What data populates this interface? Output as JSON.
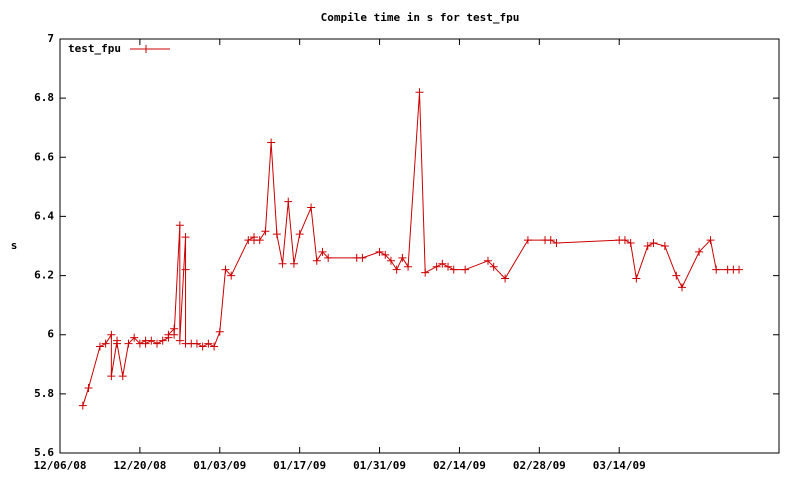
{
  "chart_data": {
    "type": "line",
    "title": "Compile time in s for test_fpu",
    "ylabel": "s",
    "legend": "top-left",
    "x": [
      "2008-12-10",
      "2008-12-11",
      "2008-12-13",
      "2008-12-14",
      "2008-12-15",
      "2008-12-15",
      "2008-12-16",
      "2008-12-16",
      "2008-12-17",
      "2008-12-18",
      "2008-12-19",
      "2008-12-20",
      "2008-12-21",
      "2008-12-21",
      "2008-12-22",
      "2008-12-23",
      "2008-12-24",
      "2008-12-25",
      "2008-12-25",
      "2008-12-26",
      "2008-12-26",
      "2008-12-27",
      "2008-12-27",
      "2008-12-28",
      "2008-12-28",
      "2008-12-28",
      "2008-12-29",
      "2008-12-30",
      "2008-12-31",
      "2009-01-01",
      "2009-01-02",
      "2009-01-03",
      "2009-01-04",
      "2009-01-05",
      "2009-01-08",
      "2009-01-09",
      "2009-01-09",
      "2009-01-10",
      "2009-01-11",
      "2009-01-12",
      "2009-01-13",
      "2009-01-14",
      "2009-01-15",
      "2009-01-16",
      "2009-01-17",
      "2009-01-19",
      "2009-01-20",
      "2009-01-21",
      "2009-01-22",
      "2009-01-27",
      "2009-01-28",
      "2009-01-31",
      "2009-02-01",
      "2009-02-02",
      "2009-02-03",
      "2009-02-04",
      "2009-02-05",
      "2009-02-07",
      "2009-02-08",
      "2009-02-10",
      "2009-02-11",
      "2009-02-12",
      "2009-02-13",
      "2009-02-15",
      "2009-02-19",
      "2009-02-20",
      "2009-02-22",
      "2009-02-26",
      "2009-03-01",
      "2009-03-02",
      "2009-03-03",
      "2009-03-14",
      "2009-03-15",
      "2009-03-16",
      "2009-03-17",
      "2009-03-19",
      "2009-03-20",
      "2009-03-22",
      "2009-03-24",
      "2009-03-25",
      "2009-03-28",
      "2009-03-30",
      "2009-03-31",
      "2009-04-02",
      "2009-04-03",
      "2009-04-04"
    ],
    "series": [
      {
        "name": "test_fpu",
        "color": "#cc0000",
        "values": [
          5.76,
          5.82,
          5.96,
          5.97,
          6.0,
          5.86,
          5.98,
          5.97,
          5.86,
          5.97,
          5.99,
          5.97,
          5.98,
          5.97,
          5.98,
          5.97,
          5.98,
          5.99,
          6.0,
          6.02,
          6.0,
          6.37,
          5.98,
          6.33,
          6.22,
          5.97,
          5.97,
          5.97,
          5.96,
          5.97,
          5.96,
          6.01,
          6.22,
          6.2,
          6.32,
          6.33,
          6.32,
          6.32,
          6.35,
          6.65,
          6.34,
          6.24,
          6.45,
          6.24,
          6.34,
          6.43,
          6.25,
          6.28,
          6.26,
          6.26,
          6.26,
          6.28,
          6.27,
          6.25,
          6.22,
          6.26,
          6.23,
          6.82,
          6.21,
          6.23,
          6.24,
          6.23,
          6.22,
          6.22,
          6.25,
          6.23,
          6.19,
          6.32,
          6.32,
          6.32,
          6.31,
          6.32,
          6.32,
          6.31,
          6.19,
          6.3,
          6.31,
          6.3,
          6.2,
          6.16,
          6.28,
          6.32,
          6.22,
          6.22,
          6.22,
          6.22
        ]
      }
    ],
    "xlim": [
      "2008-12-06",
      "2009-04-11"
    ],
    "xticks": [
      {
        "value": "2008-12-06",
        "label": "12/06/08"
      },
      {
        "value": "2008-12-20",
        "label": "12/20/08"
      },
      {
        "value": "2009-01-03",
        "label": "01/03/09"
      },
      {
        "value": "2009-01-17",
        "label": "01/17/09"
      },
      {
        "value": "2009-01-31",
        "label": "01/31/09"
      },
      {
        "value": "2009-02-14",
        "label": "02/14/09"
      },
      {
        "value": "2009-02-28",
        "label": "02/28/09"
      },
      {
        "value": "2009-03-14",
        "label": "03/14/09"
      }
    ],
    "ylim": [
      5.6,
      7
    ],
    "yticks": [
      5.6,
      5.8,
      6,
      6.2,
      6.4,
      6.6,
      6.8,
      7
    ]
  }
}
